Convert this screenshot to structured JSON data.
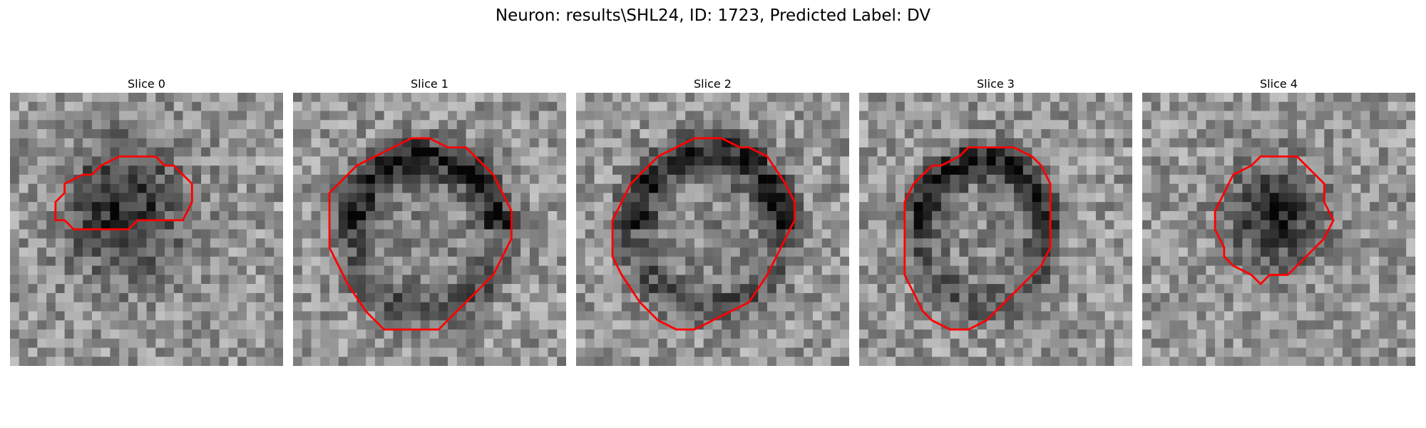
{
  "figure": {
    "title": "Neuron: results\\SHL24, ID: 1723, Predicted Label: DV",
    "contour_color": "#ff0000",
    "colormap": "gray",
    "grid_size": 30,
    "panels": [
      {
        "title": "Slice 0",
        "contour": [
          [
            14,
            7
          ],
          [
            16,
            7
          ],
          [
            17,
            8
          ],
          [
            18,
            8
          ],
          [
            20,
            10
          ],
          [
            20,
            12
          ],
          [
            19,
            14
          ],
          [
            14,
            14
          ],
          [
            13,
            15
          ],
          [
            9,
            15
          ],
          [
            8,
            15
          ],
          [
            7,
            15
          ],
          [
            6,
            14
          ],
          [
            5,
            14
          ],
          [
            5,
            12
          ],
          [
            6,
            11
          ],
          [
            6,
            10
          ],
          [
            8,
            9
          ],
          [
            9,
            9
          ],
          [
            10,
            8
          ],
          [
            12,
            7
          ],
          [
            14,
            7
          ]
        ]
      },
      {
        "title": "Slice 1",
        "contour": [
          [
            17,
            6
          ],
          [
            19,
            6
          ],
          [
            21,
            8
          ],
          [
            22,
            9
          ],
          [
            23,
            11
          ],
          [
            24,
            13
          ],
          [
            24,
            16
          ],
          [
            23,
            18
          ],
          [
            22,
            20
          ],
          [
            20,
            22
          ],
          [
            18,
            24
          ],
          [
            16,
            26
          ],
          [
            13,
            26
          ],
          [
            10,
            26
          ],
          [
            8,
            24
          ],
          [
            6,
            21
          ],
          [
            5,
            19
          ],
          [
            4,
            17
          ],
          [
            4,
            14
          ],
          [
            4,
            11
          ],
          [
            5,
            10
          ],
          [
            7,
            8
          ],
          [
            9,
            7
          ],
          [
            11,
            6
          ],
          [
            13,
            5
          ],
          [
            15,
            5
          ],
          [
            17,
            6
          ]
        ]
      },
      {
        "title": "Slice 2",
        "contour": [
          [
            16,
            5
          ],
          [
            18,
            6
          ],
          [
            19,
            6
          ],
          [
            21,
            7
          ],
          [
            23,
            10
          ],
          [
            24,
            12
          ],
          [
            24,
            14
          ],
          [
            23,
            16
          ],
          [
            22,
            18
          ],
          [
            21,
            20
          ],
          [
            19,
            23
          ],
          [
            17,
            24
          ],
          [
            15,
            25
          ],
          [
            13,
            26
          ],
          [
            11,
            26
          ],
          [
            9,
            25
          ],
          [
            8,
            24
          ],
          [
            7,
            23
          ],
          [
            5,
            20
          ],
          [
            4,
            18
          ],
          [
            4,
            14
          ],
          [
            5,
            12
          ],
          [
            6,
            10
          ],
          [
            7,
            9
          ],
          [
            8,
            8
          ],
          [
            9,
            7
          ],
          [
            11,
            6
          ],
          [
            13,
            5
          ],
          [
            16,
            5
          ]
        ]
      },
      {
        "title": "Slice 3",
        "contour": [
          [
            17,
            6
          ],
          [
            19,
            7
          ],
          [
            20,
            8
          ],
          [
            21,
            10
          ],
          [
            21,
            12
          ],
          [
            21,
            14
          ],
          [
            21,
            17
          ],
          [
            20,
            19
          ],
          [
            19,
            20
          ],
          [
            17,
            22
          ],
          [
            16,
            23
          ],
          [
            15,
            24
          ],
          [
            14,
            25
          ],
          [
            12,
            26
          ],
          [
            10,
            26
          ],
          [
            8,
            25
          ],
          [
            7,
            24
          ],
          [
            6,
            22
          ],
          [
            5,
            20
          ],
          [
            5,
            18
          ],
          [
            5,
            15
          ],
          [
            5,
            12
          ],
          [
            6,
            10
          ],
          [
            7,
            9
          ],
          [
            8,
            8
          ],
          [
            9,
            8
          ],
          [
            11,
            7
          ],
          [
            12,
            6
          ],
          [
            14,
            6
          ],
          [
            17,
            6
          ]
        ]
      },
      {
        "title": "Slice 4",
        "contour": [
          [
            15,
            7
          ],
          [
            17,
            7
          ],
          [
            18,
            8
          ],
          [
            20,
            10
          ],
          [
            20,
            12
          ],
          [
            21,
            14
          ],
          [
            20,
            16
          ],
          [
            19,
            17
          ],
          [
            18,
            18
          ],
          [
            17,
            19
          ],
          [
            16,
            20
          ],
          [
            14,
            20
          ],
          [
            13,
            21
          ],
          [
            12,
            20
          ],
          [
            10,
            19
          ],
          [
            9,
            18
          ],
          [
            9,
            17
          ],
          [
            8,
            15
          ],
          [
            8,
            13
          ],
          [
            9,
            11
          ],
          [
            10,
            9
          ],
          [
            12,
            8
          ],
          [
            13,
            7
          ],
          [
            15,
            7
          ]
        ]
      }
    ]
  }
}
